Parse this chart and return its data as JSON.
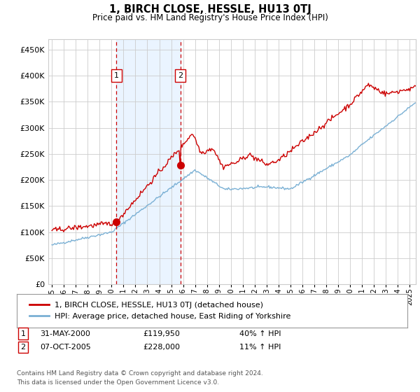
{
  "title": "1, BIRCH CLOSE, HESSLE, HU13 0TJ",
  "subtitle": "Price paid vs. HM Land Registry's House Price Index (HPI)",
  "legend_line1": "1, BIRCH CLOSE, HESSLE, HU13 0TJ (detached house)",
  "legend_line2": "HPI: Average price, detached house, East Riding of Yorkshire",
  "footnote": "Contains HM Land Registry data © Crown copyright and database right 2024.\nThis data is licensed under the Open Government Licence v3.0.",
  "sale1_date": "31-MAY-2000",
  "sale1_price": "£119,950",
  "sale1_hpi": "40% ↑ HPI",
  "sale2_date": "07-OCT-2005",
  "sale2_price": "£228,000",
  "sale2_hpi": "11% ↑ HPI",
  "sale1_x": 2000.42,
  "sale2_x": 2005.77,
  "sale1_y": 119950,
  "sale2_y": 228000,
  "red_line_color": "#cc0000",
  "blue_line_color": "#7ab0d4",
  "shade_color": "#ddeeff",
  "grid_color": "#cccccc",
  "plot_bg": "#ffffff",
  "vline_color": "#cc0000",
  "ylim": [
    0,
    470000
  ],
  "yticks": [
    0,
    50000,
    100000,
    150000,
    200000,
    250000,
    300000,
    350000,
    400000,
    450000
  ],
  "xmin": 1994.7,
  "xmax": 2025.5,
  "xticks": [
    1995,
    1996,
    1997,
    1998,
    1999,
    2000,
    2001,
    2002,
    2003,
    2004,
    2005,
    2006,
    2007,
    2008,
    2009,
    2010,
    2011,
    2012,
    2013,
    2014,
    2015,
    2016,
    2017,
    2018,
    2019,
    2020,
    2021,
    2022,
    2023,
    2024,
    2025
  ]
}
